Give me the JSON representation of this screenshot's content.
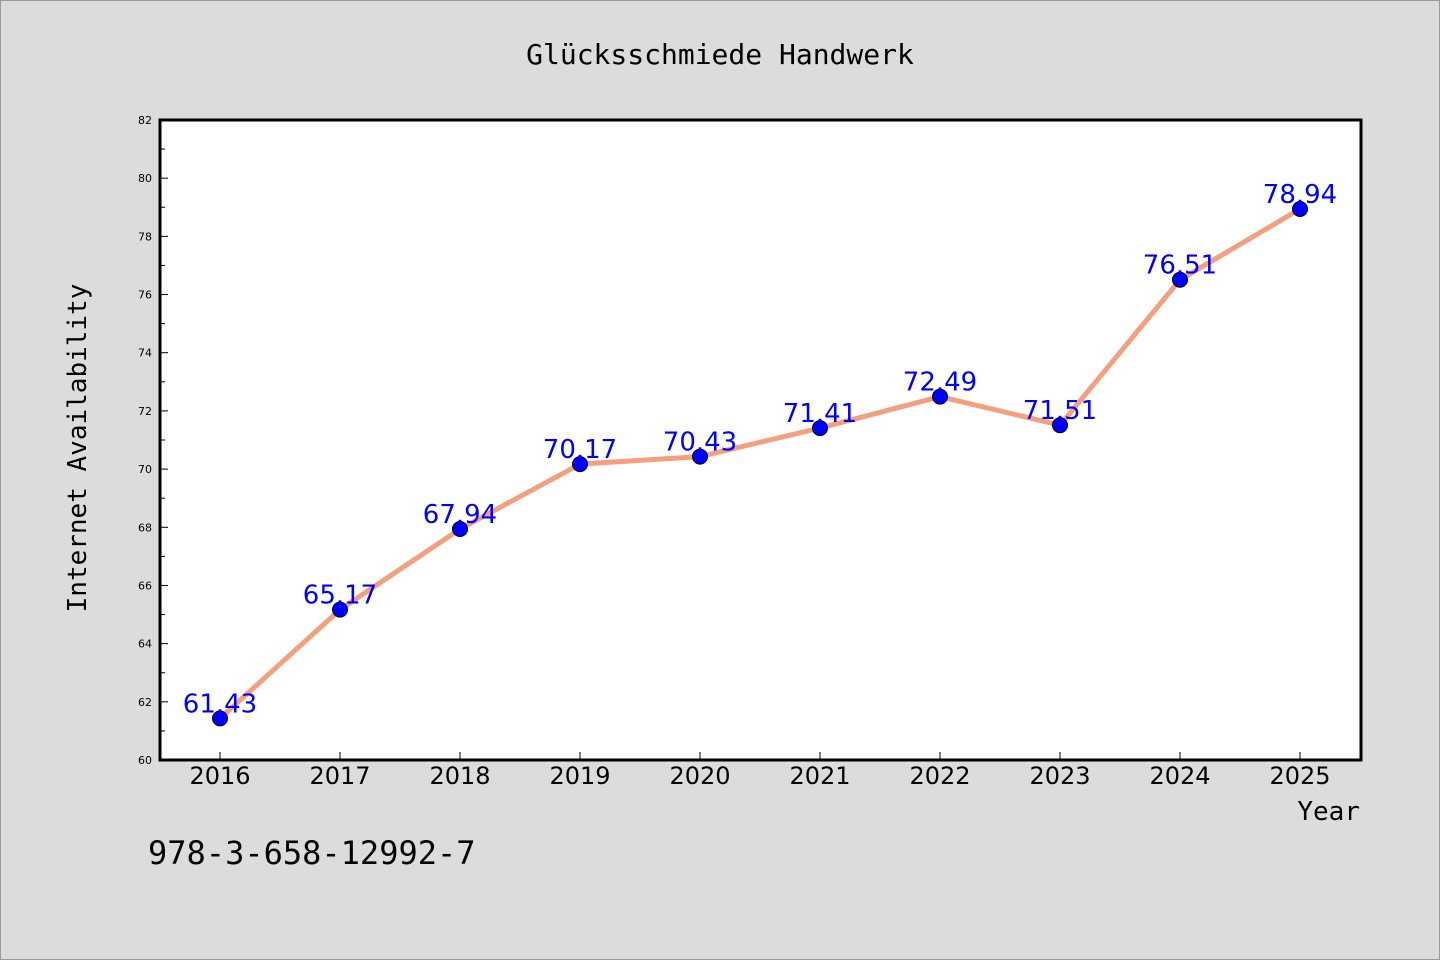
{
  "chart_data": {
    "type": "line",
    "title": "Glücksschmiede Handwerk",
    "xlabel": "Year",
    "ylabel": "Internet Availability",
    "x": [
      "2016",
      "2017",
      "2018",
      "2019",
      "2020",
      "2021",
      "2022",
      "2023",
      "2024",
      "2025"
    ],
    "values": [
      61.43,
      65.17,
      67.94,
      70.17,
      70.43,
      71.41,
      72.49,
      71.51,
      76.51,
      78.94
    ],
    "data_labels": [
      "61.43",
      "65.17",
      "67.94",
      "70.17",
      "70.43",
      "71.41",
      "72.49",
      "71.51",
      "76.51",
      "78.94"
    ],
    "ylim": [
      60,
      82
    ],
    "yticks": [
      60,
      62,
      64,
      66,
      68,
      70,
      72,
      74,
      76,
      78,
      80,
      82
    ],
    "grid": false,
    "colors": {
      "line": "#f4a07e",
      "marker": "#0000ff",
      "data_label": "#0000ff",
      "plot_background": "#ffffff",
      "page_background": "#dcdcdc"
    }
  },
  "footer": {
    "isbn": "978-3-658-12992-7"
  }
}
